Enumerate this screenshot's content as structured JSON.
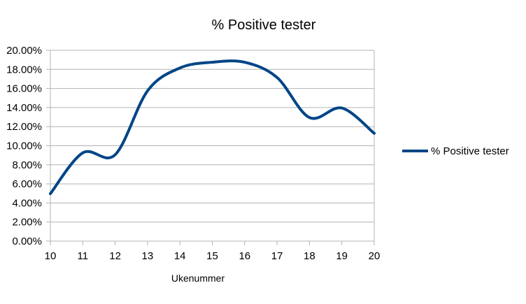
{
  "chart_data": {
    "type": "line",
    "title": "% Positive tester",
    "xlabel": "Ukenummer",
    "ylabel": "",
    "x": [
      10,
      11,
      12,
      13,
      14,
      15,
      16,
      17,
      18,
      19,
      20
    ],
    "series": [
      {
        "name": "% Positive tester",
        "values": [
          0.0497,
          0.0925,
          0.0905,
          0.1575,
          0.1815,
          0.1875,
          0.1875,
          0.1715,
          0.1295,
          0.1395,
          0.113
        ],
        "color": "#004586"
      }
    ],
    "xlim": [
      10,
      20
    ],
    "ylim": [
      0,
      0.2
    ],
    "yticks": [
      "0.00%",
      "2.00%",
      "4.00%",
      "6.00%",
      "8.00%",
      "10.00%",
      "12.00%",
      "14.00%",
      "16.00%",
      "18.00%",
      "20.00%"
    ],
    "xticks": [
      "10",
      "11",
      "12",
      "13",
      "14",
      "15",
      "16",
      "17",
      "18",
      "19",
      "20"
    ],
    "grid": true,
    "smooth": true,
    "legend_position": "right"
  }
}
